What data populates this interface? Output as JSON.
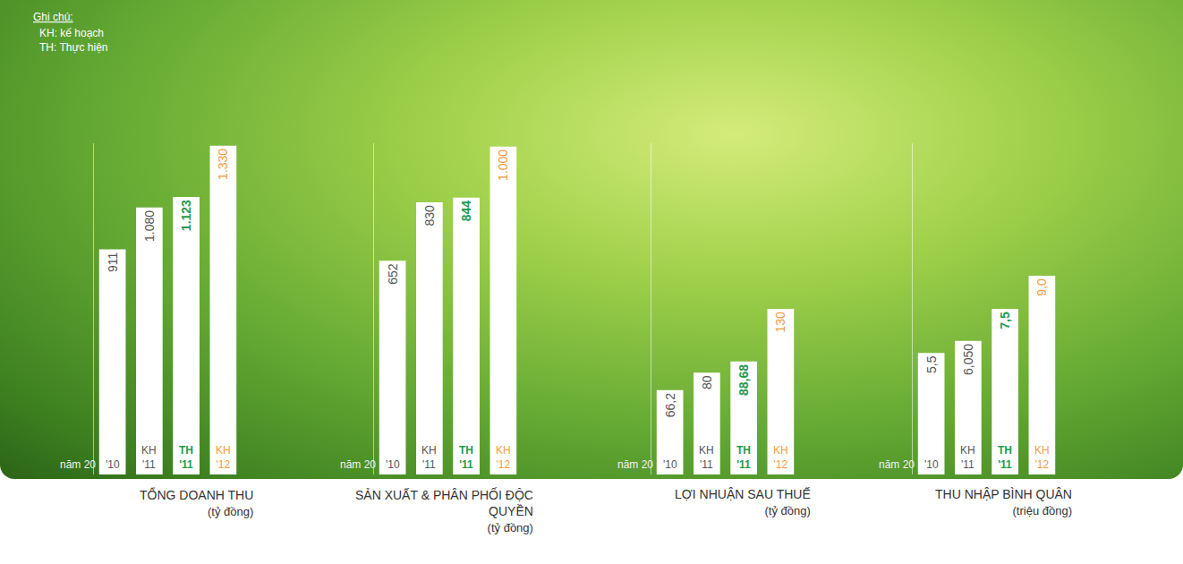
{
  "notes": {
    "title": "Ghi chú:",
    "items": [
      "KH: kế hoạch",
      "TH: Thực hiện"
    ]
  },
  "chart_data": [
    {
      "type": "bar",
      "title": "TỔNG DOANH THU",
      "subtitle": "(tỷ đồng)",
      "xlabel": "năm 20",
      "categories": [
        "'10",
        "KH '11",
        "TH '11",
        "KH '12"
      ],
      "values": [
        911,
        1080,
        1123,
        1330
      ],
      "value_labels": [
        "911",
        "1.080",
        "1.123",
        "1.330"
      ],
      "color": "#ffffff",
      "ylim": [
        0,
        1340
      ],
      "yticks": [],
      "tick_labels": false,
      "grid": false,
      "data_labels": true
    },
    {
      "type": "bar",
      "title": "SẢN XUẤT & PHÂN PHỐI ĐỘC QUYỀN",
      "subtitle": "(tỷ đồng)",
      "xlabel": "năm 20",
      "categories": [
        "'10",
        "KH '11",
        "TH '11",
        "KH '12"
      ],
      "values": [
        652,
        830,
        844,
        1000
      ],
      "value_labels": [
        "652",
        "830",
        "844",
        "1.000"
      ],
      "color": "#ffffff",
      "ylim": [
        0,
        1010
      ],
      "yticks": [],
      "tick_labels": false,
      "grid": false,
      "data_labels": true
    },
    {
      "type": "bar",
      "title": "LỢI NHUẬN SAU THUẾ",
      "subtitle": "(tỷ đồng)",
      "xlabel": "năm 20",
      "categories": [
        "'10",
        "KH '11",
        "TH '11",
        "KH '12"
      ],
      "values": [
        66.2,
        80,
        88.68,
        130
      ],
      "value_labels": [
        "66,2",
        "80",
        "88,68",
        "130"
      ],
      "color": "#ffffff",
      "ylim": [
        0,
        260
      ],
      "yticks": [],
      "tick_labels": false,
      "grid": false,
      "data_labels": true
    },
    {
      "type": "bar",
      "title": "THU NHẬP BÌNH QUÂN",
      "subtitle": "(triệu đồng)",
      "xlabel": "năm 20",
      "categories": [
        "'10",
        "KH '11",
        "TH '11",
        "KH '12"
      ],
      "values": [
        5.5,
        6.05,
        7.5,
        9.0
      ],
      "value_labels": [
        "5,5",
        "6,050",
        "7,5",
        "9,0"
      ],
      "color": "#ffffff",
      "ylim": [
        0,
        15
      ],
      "yticks": [],
      "tick_labels": false,
      "grid": false,
      "data_labels": true
    }
  ]
}
